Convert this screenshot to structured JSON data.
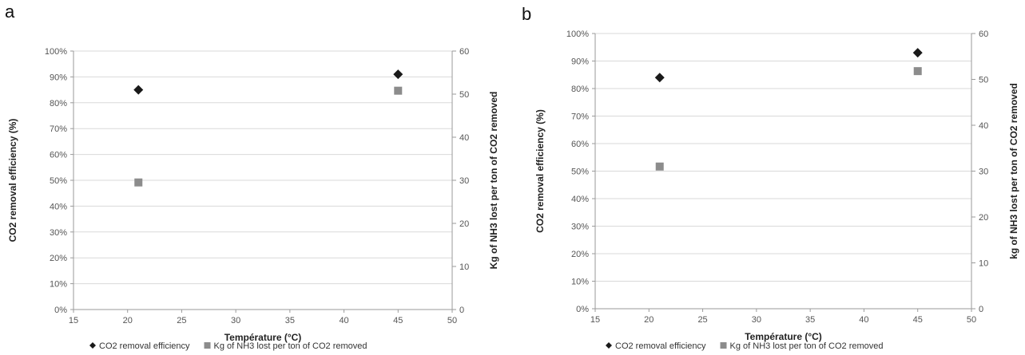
{
  "chart_data": [
    {
      "panel_label": "a",
      "type": "scatter",
      "xlabel": "Température (°C)",
      "ylabel": "CO2 removal efficiency (%)",
      "y2label": "Kg of NH3 lost per ton of CO2 removed",
      "xlim": [
        15,
        50
      ],
      "xticks": [
        "15",
        "20",
        "25",
        "30",
        "35",
        "40",
        "45",
        "50"
      ],
      "ylim": [
        0,
        100
      ],
      "yticks": [
        "0%",
        "10%",
        "20%",
        "30%",
        "40%",
        "50%",
        "60%",
        "70%",
        "80%",
        "90%",
        "100%"
      ],
      "y2lim": [
        0,
        60
      ],
      "y2ticks": [
        "0",
        "10",
        "20",
        "30",
        "40",
        "50",
        "60"
      ],
      "grid": true,
      "legend_position": "bottom",
      "series": [
        {
          "name": "CO2 removal efficiency",
          "axis": "left",
          "marker": "diamond",
          "color": "#1a1a1a",
          "x": [
            21,
            45
          ],
          "y": [
            85,
            91
          ]
        },
        {
          "name": "Kg of NH3 lost per ton of CO2 removed",
          "axis": "right",
          "marker": "square",
          "color": "#8c8c8c",
          "x": [
            21,
            45
          ],
          "y": [
            29.5,
            50.8
          ]
        }
      ]
    },
    {
      "panel_label": "b",
      "type": "scatter",
      "xlabel": "Température (°C)",
      "ylabel": "CO2 removal efficiency (%)",
      "y2label": "kg of NH3 lost per ton of CO2 removed",
      "xlim": [
        15,
        50
      ],
      "xticks": [
        "15",
        "20",
        "25",
        "30",
        "35",
        "40",
        "45",
        "50"
      ],
      "ylim": [
        0,
        100
      ],
      "yticks": [
        "0%",
        "10%",
        "20%",
        "30%",
        "40%",
        "50%",
        "60%",
        "70%",
        "80%",
        "90%",
        "100%"
      ],
      "y2lim": [
        0,
        60
      ],
      "y2ticks": [
        "0",
        "10",
        "20",
        "30",
        "40",
        "50",
        "60"
      ],
      "grid": true,
      "legend_position": "bottom",
      "series": [
        {
          "name": "CO2 removal efficiency",
          "axis": "left",
          "marker": "diamond",
          "color": "#1a1a1a",
          "x": [
            21,
            45
          ],
          "y": [
            84,
            93
          ]
        },
        {
          "name": "Kg of NH3 lost per ton of CO2 removed",
          "axis": "right",
          "marker": "square",
          "color": "#8c8c8c",
          "x": [
            21,
            45
          ],
          "y": [
            31,
            51.8
          ]
        }
      ]
    }
  ]
}
